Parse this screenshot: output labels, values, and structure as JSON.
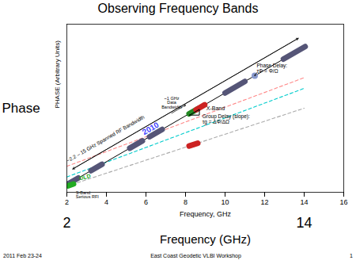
{
  "chart_data": {
    "type": "line",
    "title": "Observing Frequency Bands",
    "x_label": "Frequency, GHz",
    "y_label": "PHASE (Arbitrary Units)",
    "y_label_large": "Phase",
    "x_label_large": "Frequency (GHz)",
    "x_labels_large": [
      2,
      14
    ],
    "footer": [
      "2011 Feb 23-24",
      "East Coast Geodetic VLBI Workshop",
      "1"
    ],
    "xlim": [
      2,
      16
    ],
    "xticks": [
      2,
      4,
      6,
      8,
      10,
      12,
      14,
      16
    ],
    "ylim": [
      0,
      1.1
    ],
    "tick_labels": "x",
    "grid": false,
    "series": [
      {
        "type": "line",
        "color": "#aaaaaa",
        "line_style": "dashed",
        "x": [
          2,
          14
        ],
        "values": [
          0.04,
          0.55
        ]
      },
      {
        "type": "line",
        "color": "#00cccc",
        "line_style": "dashed",
        "x": [
          2,
          14
        ],
        "values": [
          0.1,
          0.68
        ]
      },
      {
        "type": "line",
        "color": "#ff8888",
        "line_style": "dashed",
        "x": [
          2,
          14
        ],
        "values": [
          0.17,
          0.75
        ]
      },
      {
        "type": "line",
        "color": "#000000",
        "line_style": "solid",
        "x": [
          2,
          14
        ],
        "values": [
          0.05,
          0.95
        ]
      },
      {
        "type": "segment",
        "color": "#555577",
        "x": [
          2.02,
          2.58
        ],
        "values": [
          0.0515,
          0.0935
        ]
      },
      {
        "type": "segment",
        "color": "#555577",
        "x": [
          3.22,
          3.78
        ],
        "values": [
          0.1415,
          0.1835
        ]
      },
      {
        "type": "segment",
        "color": "#555577",
        "x": [
          5.18,
          5.82
        ],
        "values": [
          0.2885,
          0.3365
        ]
      },
      {
        "type": "segment",
        "color": "#555577",
        "x": [
          6.18,
          6.82
        ],
        "values": [
          0.3635,
          0.4115
        ]
      },
      {
        "type": "segment",
        "color": "#228822",
        "x": [
          8.18,
          8.62
        ],
        "values": [
          0.5135,
          0.5465
        ]
      },
      {
        "type": "segment",
        "color": "#cc2222",
        "x": [
          8.53,
          8.97
        ],
        "values": [
          0.53975,
          0.57275
        ]
      },
      {
        "type": "segment",
        "color": "#555577",
        "x": [
          10,
          11
        ],
        "values": [
          0.65,
          0.725
        ]
      },
      {
        "type": "segment",
        "color": "#555577",
        "x": [
          12.95,
          14.05
        ],
        "values": [
          0.87125,
          0.95375
        ]
      },
      {
        "type": "segment",
        "color": "#22aa22",
        "x": [
          2.06,
          2.34
        ],
        "values": [
          0.04255,
          0.05445
        ]
      },
      {
        "type": "segment",
        "color": "#cc2222",
        "x": [
          8.18,
          8.62
        ],
        "values": [
          0.30265,
          0.32135
        ]
      },
      {
        "type": "scatter",
        "color": "#8899cc",
        "x": [
          11.5
        ],
        "values": [
          0.7625
        ]
      },
      {
        "type": "line",
        "color": "#000000",
        "line_style": "solid",
        "x": [
          8.2,
          8.7,
          8.7,
          8.2
        ],
        "values": [
          0.505,
          0.5425,
          0.505,
          0.505
        ]
      }
    ],
    "double_arrow": {
      "x1": 2.3,
      "y1": 0.1525,
      "x2": 13.7,
      "y2": 1.0075
    },
    "arrows": [
      {
        "x1": 7.3,
        "y1": 0.5175,
        "x2": 8.0,
        "y2": 0.57
      },
      {
        "x1": 11.6,
        "y1": 0.7825,
        "x2": 11.5,
        "y2": 0.7625
      }
    ],
    "annotations": [
      {
        "text": "~2.2 – 15 GHz Spanned RF Bandwidth",
        "x": 4.0,
        "y": 0.34
      },
      {
        "text": "2010",
        "x": 6.3,
        "y": 0.4025,
        "color": "#4444ff"
      },
      {
        "text": "OLD",
        "x": 2.65,
        "y": 0.077625,
        "color": "#22aa22"
      },
      {
        "text": "S-Band:\nSerious RFI",
        "x": 2.45,
        "y": 0.0085
      },
      {
        "text": "X-Band",
        "x": 9.05,
        "y": 0.55125
      },
      {
        "text": "~1 GHz\nData\nBandwidth",
        "x": 7.3,
        "y": 0.5475
      },
      {
        "text": "Group Delay (slope):\nτg = ΔΦ/ΔΩ",
        "x": 8.85,
        "y": 0.5075
      },
      {
        "text": "Phase Delay:\nτΦ = Φ/Ω",
        "x": 11.6,
        "y": 0.7825
      }
    ]
  }
}
